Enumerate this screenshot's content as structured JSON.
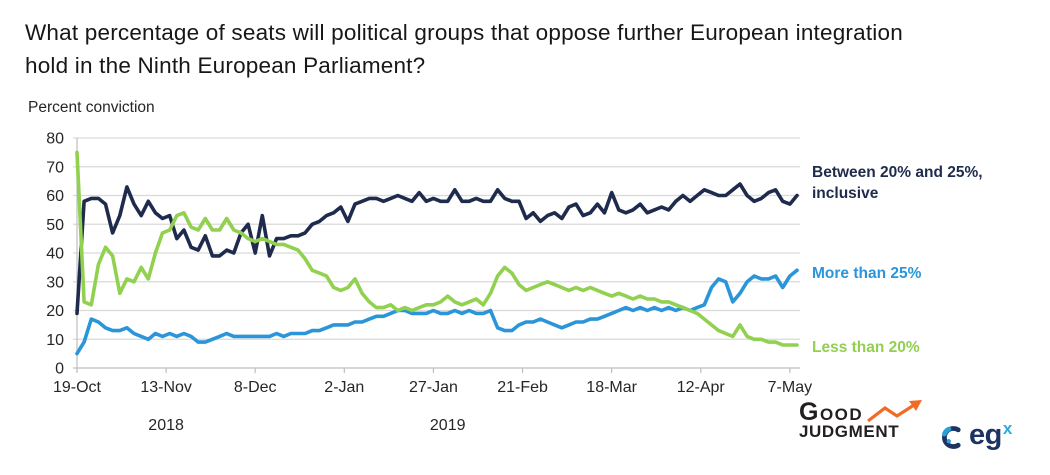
{
  "chart_data": {
    "type": "line",
    "title": "What percentage of seats will political groups that oppose further European integration hold in the Ninth European Parliament?",
    "title_lines": [
      "What percentage of seats will political groups that oppose further European integration",
      "hold in the Ninth European Parliament?"
    ],
    "ylabel": "Percent conviction",
    "xlabel": "",
    "ylim": [
      0,
      80
    ],
    "y_ticks": [
      0,
      10,
      20,
      30,
      40,
      50,
      60,
      70,
      80
    ],
    "grid": "horizontal",
    "legend_position": "right-of-plot",
    "x_unit": "days since 19-Oct-2018",
    "x_step_days": 2,
    "x_range_days": [
      0,
      202
    ],
    "x_ticks": [
      {
        "day": 0,
        "label": "19-Oct"
      },
      {
        "day": 25,
        "label": "13-Nov"
      },
      {
        "day": 50,
        "label": "8-Dec"
      },
      {
        "day": 75,
        "label": "2-Jan"
      },
      {
        "day": 100,
        "label": "27-Jan"
      },
      {
        "day": 125,
        "label": "21-Feb"
      },
      {
        "day": 150,
        "label": "18-Mar"
      },
      {
        "day": 175,
        "label": "12-Apr"
      },
      {
        "day": 200,
        "label": "7-May"
      }
    ],
    "year_labels": [
      {
        "day": 25,
        "label": "2018"
      },
      {
        "day": 104,
        "label": "2019"
      }
    ],
    "series": [
      {
        "name": "Between 20% and 25%, inclusive",
        "color": "#1f2b4d",
        "values": [
          19,
          58,
          59,
          59,
          57,
          47,
          53,
          63,
          57,
          53,
          58,
          54,
          52,
          53,
          45,
          48,
          42,
          41,
          46,
          39,
          39,
          41,
          40,
          47,
          50,
          40,
          53,
          39,
          45,
          45,
          46,
          46,
          47,
          50,
          51,
          53,
          54,
          56,
          51,
          57,
          58,
          59,
          59,
          58,
          59,
          60,
          59,
          58,
          61,
          58,
          59,
          58,
          58,
          62,
          58,
          58,
          59,
          58,
          58,
          62,
          59,
          58,
          58,
          52,
          54,
          51,
          53,
          54,
          52,
          56,
          57,
          53,
          54,
          57,
          54,
          61,
          55,
          54,
          55,
          57,
          54,
          55,
          56,
          55,
          58,
          60,
          58,
          60,
          62,
          61,
          60,
          60,
          62,
          64,
          60,
          58,
          59,
          61,
          62,
          58,
          57,
          60
        ]
      },
      {
        "name": "More than 25%",
        "color": "#2a96d9",
        "values": [
          5,
          9,
          17,
          16,
          14,
          13,
          13,
          14,
          12,
          11,
          10,
          12,
          11,
          12,
          11,
          12,
          11,
          9,
          9,
          10,
          11,
          12,
          11,
          11,
          11,
          11,
          11,
          11,
          12,
          11,
          12,
          12,
          12,
          13,
          13,
          14,
          15,
          15,
          15,
          16,
          16,
          17,
          18,
          18,
          19,
          20,
          20,
          19,
          19,
          19,
          20,
          19,
          19,
          20,
          19,
          20,
          19,
          19,
          20,
          14,
          13,
          13,
          15,
          16,
          16,
          17,
          16,
          15,
          14,
          15,
          16,
          16,
          17,
          17,
          18,
          19,
          20,
          21,
          20,
          21,
          20,
          21,
          20,
          21,
          20,
          21,
          20,
          21,
          22,
          28,
          31,
          30,
          23,
          26,
          30,
          32,
          31,
          31,
          32,
          28,
          32,
          34
        ]
      },
      {
        "name": "Less than 20%",
        "color": "#92d050",
        "values": [
          75,
          23,
          22,
          36,
          42,
          39,
          26,
          31,
          30,
          35,
          31,
          40,
          47,
          48,
          53,
          54,
          49,
          48,
          52,
          48,
          48,
          52,
          48,
          47,
          45,
          44,
          45,
          44,
          43,
          43,
          42,
          41,
          38,
          34,
          33,
          32,
          28,
          27,
          28,
          31,
          26,
          23,
          21,
          21,
          22,
          20,
          21,
          20,
          21,
          22,
          22,
          23,
          25,
          23,
          22,
          23,
          24,
          22,
          26,
          32,
          35,
          33,
          29,
          27,
          28,
          29,
          30,
          29,
          28,
          27,
          28,
          27,
          28,
          27,
          26,
          25,
          26,
          25,
          24,
          25,
          24,
          24,
          23,
          23,
          22,
          21,
          20,
          19,
          17,
          15,
          13,
          12,
          11,
          15,
          11,
          10,
          10,
          9,
          9,
          8,
          8,
          8
        ]
      }
    ]
  },
  "branding": {
    "good_judgment": {
      "word1": "Good",
      "word2": "Judgment",
      "arrow_color": "#f26b24",
      "text_color": "#231f20"
    },
    "egx": {
      "text": "eg",
      "sup": "x",
      "text_color": "#1d3461",
      "accent_color": "#29abe2"
    }
  }
}
